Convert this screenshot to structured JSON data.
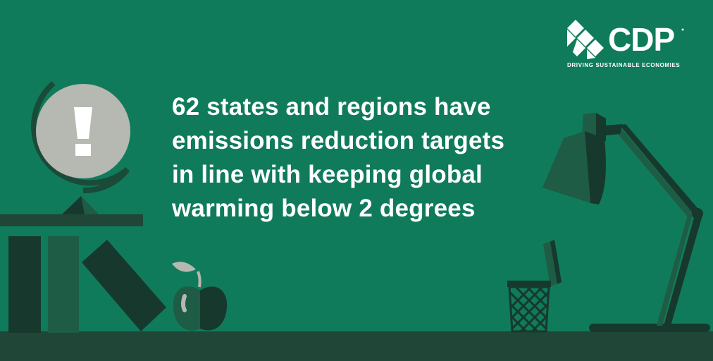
{
  "headline": {
    "lines": [
      "62 states and regions have",
      "emissions reduction targets",
      "in line with keeping global",
      "warming below 2 degrees"
    ]
  },
  "logo": {
    "name": "CDP",
    "tagline": "DRIVING SUSTAINABLE ECONOMIES"
  },
  "icons": {
    "globe": "globe-alert-icon",
    "mark": "exclamation-icon",
    "books": "books-icon",
    "apple": "apple-icon",
    "pencil_cup": "pencil-cup-icon",
    "lamp": "desk-lamp-icon"
  },
  "colors": {
    "background": "#0f7b5a",
    "floor": "#1f4637",
    "dark": "#17392d",
    "mid": "#1e5c45",
    "light_gray": "#b6b8b2",
    "text": "#ffffff"
  }
}
